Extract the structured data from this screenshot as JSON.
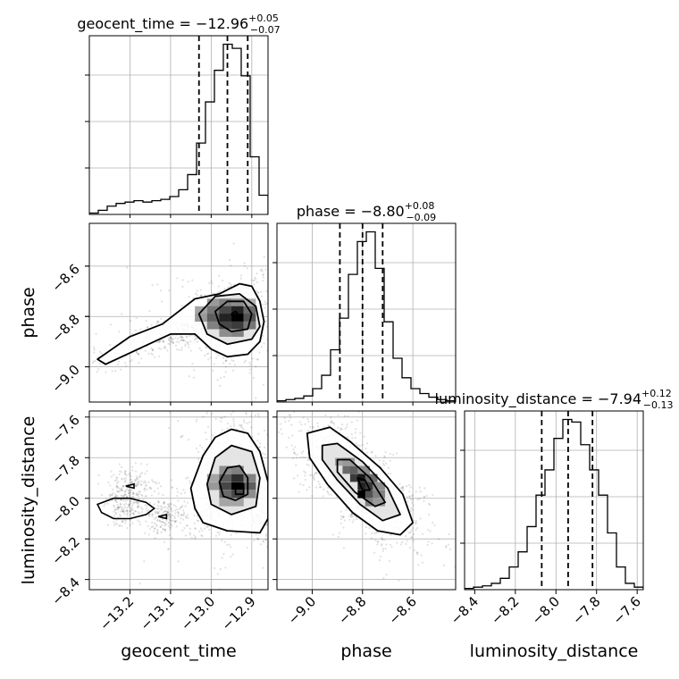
{
  "chart_data": {
    "type": "corner",
    "parameters": [
      "geocent_time",
      "phase",
      "luminosity_distance"
    ],
    "axes": {
      "geocent_time": {
        "label": "geocent_time",
        "range": [
          -13.3,
          -12.86
        ],
        "ticks": [
          -13.2,
          -13.1,
          -13.0,
          -12.9
        ],
        "tick_labels": [
          "−13.2",
          "−13.1",
          "−13.0",
          "−12.9"
        ]
      },
      "phase": {
        "label": "phase",
        "range": [
          -9.14,
          -8.43
        ],
        "ticks": [
          -9.0,
          -8.8,
          -8.6
        ],
        "tick_labels": [
          "−9.0",
          "−8.8",
          "−8.6"
        ]
      },
      "luminosity_distance": {
        "label": "luminosity_distance",
        "range": [
          -8.45,
          -7.57
        ],
        "ticks": [
          -8.4,
          -8.2,
          -8.0,
          -7.8,
          -7.6
        ],
        "tick_labels": [
          "−8.4",
          "−8.2",
          "−8.0",
          "−7.8",
          "−7.6"
        ]
      }
    },
    "summaries": [
      {
        "param": "geocent_time",
        "label": "geocent_time",
        "median": "−12.96",
        "plus": "+0.05",
        "minus": "−0.07",
        "q16": -13.03,
        "q50": -12.96,
        "q84": -12.91
      },
      {
        "param": "phase",
        "label": "phase",
        "median": "−8.80",
        "plus": "+0.08",
        "minus": "−0.09",
        "q16": -8.89,
        "q50": -8.8,
        "q84": -8.72
      },
      {
        "param": "luminosity_distance",
        "label": "luminosity_distance",
        "median": "−7.94",
        "plus": "+0.12",
        "minus": "−0.13",
        "q16": -8.07,
        "q50": -7.94,
        "q84": -7.82
      }
    ],
    "histograms": [
      {
        "param": "geocent_time",
        "counts": [
          1,
          3,
          6,
          8,
          9,
          10,
          9,
          10,
          11,
          13,
          18,
          29,
          52,
          82,
          105,
          124,
          121,
          101,
          42,
          14
        ]
      },
      {
        "param": "phase",
        "counts": [
          1,
          2,
          3,
          5,
          11,
          22,
          43,
          69,
          105,
          132,
          140,
          110,
          66,
          36,
          20,
          11,
          7,
          4,
          2,
          1
        ]
      },
      {
        "param": "luminosity_distance",
        "counts": [
          1,
          2,
          3,
          5,
          9,
          18,
          30,
          50,
          75,
          95,
          120,
          135,
          133,
          115,
          95,
          75,
          45,
          18,
          5,
          2
        ]
      }
    ],
    "pairs": [
      {
        "x": "geocent_time",
        "y": "phase",
        "density_peak": [
          -12.94,
          -8.8
        ],
        "contours": [
          [
            [
              -13.28,
              -8.97
            ],
            [
              -13.2,
              -8.88
            ],
            [
              -13.12,
              -8.83
            ],
            [
              -13.04,
              -8.73
            ],
            [
              -12.98,
              -8.71
            ],
            [
              -12.93,
              -8.67
            ],
            [
              -12.9,
              -8.68
            ],
            [
              -12.88,
              -8.74
            ],
            [
              -12.87,
              -8.82
            ],
            [
              -12.88,
              -8.9
            ],
            [
              -12.91,
              -8.95
            ],
            [
              -12.96,
              -8.96
            ],
            [
              -13.0,
              -8.93
            ],
            [
              -13.04,
              -8.87
            ],
            [
              -13.1,
              -8.87
            ],
            [
              -13.18,
              -8.93
            ],
            [
              -13.26,
              -8.99
            ]
          ],
          [
            [
              -13.03,
              -8.79
            ],
            [
              -12.99,
              -8.72
            ],
            [
              -12.93,
              -8.71
            ],
            [
              -12.89,
              -8.76
            ],
            [
              -12.88,
              -8.84
            ],
            [
              -12.9,
              -8.89
            ],
            [
              -12.96,
              -8.91
            ],
            [
              -13.01,
              -8.87
            ]
          ],
          [
            [
              -12.99,
              -8.78
            ],
            [
              -12.96,
              -8.74
            ],
            [
              -12.92,
              -8.74
            ],
            [
              -12.9,
              -8.79
            ],
            [
              -12.91,
              -8.85
            ],
            [
              -12.95,
              -8.86
            ],
            [
              -12.98,
              -8.83
            ]
          ],
          [
            [
              -12.95,
              -8.79
            ],
            [
              -12.94,
              -8.78
            ],
            [
              -12.93,
              -8.8
            ],
            [
              -12.94,
              -8.81
            ]
          ]
        ],
        "density_cells": [
          [
            -12.995,
            -8.745,
            0.35
          ],
          [
            -12.965,
            -8.745,
            0.45
          ],
          [
            -12.935,
            -8.745,
            0.4
          ],
          [
            -12.905,
            -8.745,
            0.25
          ],
          [
            -13.025,
            -8.775,
            0.3
          ],
          [
            -12.995,
            -8.775,
            0.5
          ],
          [
            -12.965,
            -8.775,
            0.7
          ],
          [
            -12.935,
            -8.775,
            0.85
          ],
          [
            -12.905,
            -8.775,
            0.55
          ],
          [
            -13.025,
            -8.805,
            0.35
          ],
          [
            -12.995,
            -8.805,
            0.6
          ],
          [
            -12.965,
            -8.805,
            0.85
          ],
          [
            -12.935,
            -8.805,
            1.0
          ],
          [
            -12.905,
            -8.805,
            0.65
          ],
          [
            -12.995,
            -8.835,
            0.45
          ],
          [
            -12.965,
            -8.835,
            0.7
          ],
          [
            -12.935,
            -8.835,
            0.75
          ],
          [
            -12.905,
            -8.835,
            0.5
          ],
          [
            -12.965,
            -8.865,
            0.4
          ],
          [
            -12.935,
            -8.865,
            0.45
          ]
        ]
      },
      {
        "x": "geocent_time",
        "y": "luminosity_distance",
        "density_peak": [
          -12.93,
          -7.97
        ],
        "contours": [
          [
            [
              -13.05,
              -7.95
            ],
            [
              -13.02,
              -7.79
            ],
            [
              -12.99,
              -7.7
            ],
            [
              -12.95,
              -7.66
            ],
            [
              -12.91,
              -7.68
            ],
            [
              -12.88,
              -7.77
            ],
            [
              -12.86,
              -7.92
            ],
            [
              -12.86,
              -8.1
            ],
            [
              -12.88,
              -8.17
            ],
            [
              -12.96,
              -8.16
            ],
            [
              -13.02,
              -8.12
            ],
            [
              -13.04,
              -8.05
            ]
          ],
          [
            [
              -13.01,
              -7.93
            ],
            [
              -12.99,
              -7.8
            ],
            [
              -12.95,
              -7.74
            ],
            [
              -12.9,
              -7.77
            ],
            [
              -12.88,
              -7.9
            ],
            [
              -12.89,
              -8.04
            ],
            [
              -12.95,
              -8.08
            ],
            [
              -13.0,
              -8.03
            ]
          ],
          [
            [
              -12.98,
              -7.92
            ],
            [
              -12.96,
              -7.85
            ],
            [
              -12.93,
              -7.84
            ],
            [
              -12.91,
              -7.9
            ],
            [
              -12.91,
              -7.98
            ],
            [
              -12.94,
              -8.01
            ],
            [
              -12.97,
              -7.99
            ]
          ],
          [
            [
              -12.94,
              -7.93
            ],
            [
              -12.92,
              -7.93
            ],
            [
              -12.92,
              -7.98
            ],
            [
              -12.94,
              -7.98
            ]
          ]
        ],
        "islands": [
          [
            [
              -13.28,
              -8.03
            ],
            [
              -13.24,
              -8.0
            ],
            [
              -13.2,
              -8.0
            ],
            [
              -13.16,
              -8.02
            ],
            [
              -13.14,
              -8.05
            ],
            [
              -13.16,
              -8.08
            ],
            [
              -13.2,
              -8.1
            ],
            [
              -13.24,
              -8.1
            ],
            [
              -13.27,
              -8.07
            ]
          ],
          [
            [
              -13.21,
              -7.94
            ],
            [
              -13.19,
              -7.93
            ],
            [
              -13.19,
              -7.95
            ]
          ],
          [
            [
              -13.13,
              -8.09
            ],
            [
              -13.11,
              -8.08
            ],
            [
              -13.11,
              -8.1
            ]
          ]
        ],
        "density_cells": [
          [
            -12.965,
            -7.86,
            0.4
          ],
          [
            -12.935,
            -7.86,
            0.45
          ],
          [
            -12.995,
            -7.9,
            0.3
          ],
          [
            -12.965,
            -7.9,
            0.6
          ],
          [
            -12.935,
            -7.9,
            0.8
          ],
          [
            -12.905,
            -7.9,
            0.45
          ],
          [
            -12.995,
            -7.94,
            0.35
          ],
          [
            -12.965,
            -7.94,
            0.7
          ],
          [
            -12.935,
            -7.94,
            1.0
          ],
          [
            -12.905,
            -7.94,
            0.6
          ],
          [
            -12.965,
            -7.98,
            0.55
          ],
          [
            -12.935,
            -7.98,
            0.7
          ],
          [
            -12.905,
            -7.98,
            0.4
          ],
          [
            -12.965,
            -8.02,
            0.3
          ],
          [
            -12.935,
            -8.02,
            0.3
          ]
        ]
      },
      {
        "x": "phase",
        "y": "luminosity_distance",
        "density_peak": [
          -8.79,
          -7.97
        ],
        "contours": [
          [
            [
              -9.02,
              -7.68
            ],
            [
              -8.93,
              -7.65
            ],
            [
              -8.85,
              -7.72
            ],
            [
              -8.73,
              -7.85
            ],
            [
              -8.64,
              -7.98
            ],
            [
              -8.6,
              -8.12
            ],
            [
              -8.65,
              -8.18
            ],
            [
              -8.74,
              -8.16
            ],
            [
              -8.84,
              -8.07
            ],
            [
              -8.94,
              -7.93
            ],
            [
              -9.01,
              -7.8
            ]
          ],
          [
            [
              -8.96,
              -7.74
            ],
            [
              -8.9,
              -7.73
            ],
            [
              -8.8,
              -7.82
            ],
            [
              -8.7,
              -7.95
            ],
            [
              -8.65,
              -8.08
            ],
            [
              -8.72,
              -8.11
            ],
            [
              -8.81,
              -8.03
            ],
            [
              -8.9,
              -7.91
            ],
            [
              -8.96,
              -7.81
            ]
          ],
          [
            [
              -8.9,
              -7.81
            ],
            [
              -8.85,
              -7.81
            ],
            [
              -8.77,
              -7.9
            ],
            [
              -8.71,
              -8.02
            ],
            [
              -8.75,
              -8.04
            ],
            [
              -8.83,
              -7.97
            ],
            [
              -8.9,
              -7.87
            ]
          ],
          [
            [
              -8.82,
              -7.9
            ],
            [
              -8.79,
              -7.91
            ],
            [
              -8.77,
              -7.96
            ],
            [
              -8.8,
              -7.96
            ]
          ]
        ],
        "density_cells": [
          [
            -8.885,
            -7.82,
            0.3
          ],
          [
            -8.855,
            -7.82,
            0.35
          ],
          [
            -8.855,
            -7.86,
            0.55
          ],
          [
            -8.825,
            -7.86,
            0.6
          ],
          [
            -8.795,
            -7.86,
            0.4
          ],
          [
            -8.825,
            -7.9,
            0.75
          ],
          [
            -8.795,
            -7.9,
            0.9
          ],
          [
            -8.765,
            -7.9,
            0.55
          ],
          [
            -8.795,
            -7.94,
            0.85
          ],
          [
            -8.765,
            -7.94,
            0.75
          ],
          [
            -8.735,
            -7.94,
            0.4
          ],
          [
            -8.795,
            -7.98,
            1.0
          ],
          [
            -8.765,
            -7.98,
            0.65
          ],
          [
            -8.735,
            -7.98,
            0.45
          ],
          [
            -8.765,
            -8.02,
            0.45
          ],
          [
            -8.735,
            -8.02,
            0.35
          ]
        ]
      }
    ],
    "samples": "random scatter of posterior samples (light grey points) behind contours",
    "grid": true
  }
}
